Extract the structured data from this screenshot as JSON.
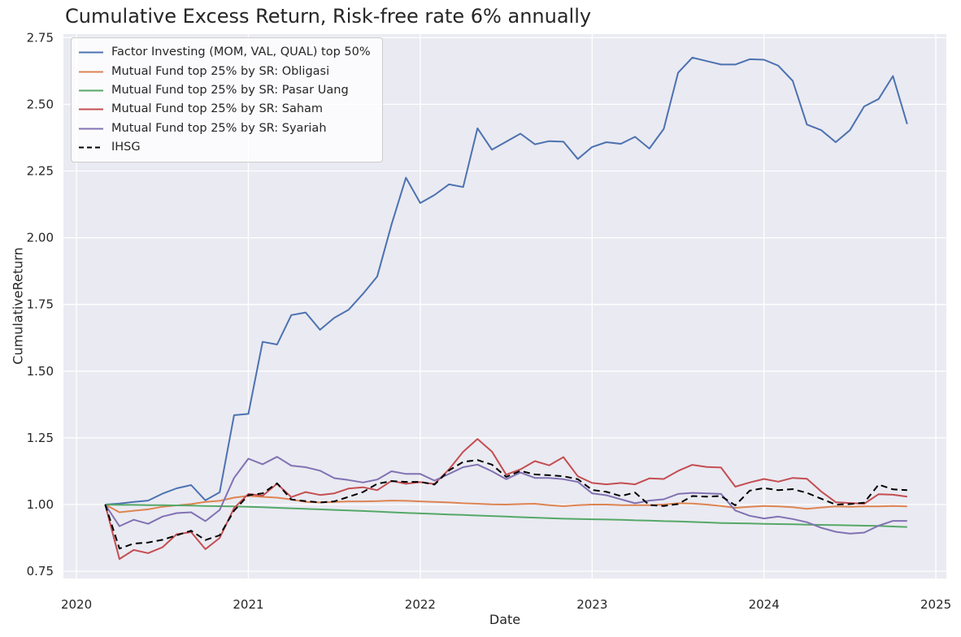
{
  "chart_data": {
    "type": "line",
    "title": "Cumulative Excess Return, Risk-free rate 6% annually",
    "xlabel": "Date",
    "ylabel": "CumulativeReturn",
    "x_tick_labels": [
      "2020",
      "2021",
      "2022",
      "2023",
      "2024",
      "2025"
    ],
    "x_tick_values": [
      2020,
      2021,
      2022,
      2023,
      2024,
      2025
    ],
    "y_tick_labels": [
      "0.75",
      "1.00",
      "1.25",
      "1.50",
      "1.75",
      "2.00",
      "2.25",
      "2.50",
      "2.75"
    ],
    "y_tick_values": [
      0.75,
      1.0,
      1.25,
      1.5,
      1.75,
      2.0,
      2.25,
      2.5,
      2.75
    ],
    "xlim": [
      2019.924,
      2025.061
    ],
    "ylim": [
      0.723,
      2.763
    ],
    "grid": true,
    "legend_position": "upper left",
    "plot_background": "#eaeaf2",
    "grid_color": "#ffffff",
    "x": [
      2020.167,
      2020.25,
      2020.333,
      2020.417,
      2020.5,
      2020.583,
      2020.667,
      2020.75,
      2020.833,
      2020.917,
      2021.0,
      2021.083,
      2021.167,
      2021.25,
      2021.333,
      2021.417,
      2021.5,
      2021.583,
      2021.667,
      2021.75,
      2021.833,
      2021.917,
      2022.0,
      2022.083,
      2022.167,
      2022.25,
      2022.333,
      2022.417,
      2022.5,
      2022.583,
      2022.667,
      2022.75,
      2022.833,
      2022.917,
      2023.0,
      2023.083,
      2023.167,
      2023.25,
      2023.333,
      2023.417,
      2023.5,
      2023.583,
      2023.667,
      2023.75,
      2023.833,
      2023.917,
      2024.0,
      2024.083,
      2024.167,
      2024.25,
      2024.333,
      2024.417,
      2024.5,
      2024.583,
      2024.667,
      2024.75,
      2024.833
    ],
    "series": [
      {
        "name": "Factor Investing (MOM, VAL, QUAL) top 50%",
        "color": "#4c72b0",
        "style": "solid",
        "values": [
          1.0,
          1.004,
          1.01,
          1.015,
          1.041,
          1.061,
          1.073,
          1.016,
          1.046,
          1.335,
          1.34,
          1.61,
          1.6,
          1.71,
          1.72,
          1.655,
          1.7,
          1.73,
          1.79,
          1.855,
          2.05,
          2.225,
          2.13,
          2.16,
          2.2,
          2.19,
          2.41,
          2.33,
          2.36,
          2.39,
          2.35,
          2.362,
          2.36,
          2.295,
          2.34,
          2.358,
          2.352,
          2.378,
          2.334,
          2.408,
          2.618,
          2.675,
          2.662,
          2.649,
          2.649,
          2.669,
          2.667,
          2.645,
          2.588,
          2.424,
          2.403,
          2.358,
          2.403,
          2.492,
          2.52,
          2.606,
          2.426
        ]
      },
      {
        "name": "Mutual Fund top 25% by SR: Obligasi",
        "color": "#dd8452",
        "style": "solid",
        "values": [
          1.0,
          0.971,
          0.977,
          0.982,
          0.992,
          0.997,
          1.002,
          1.01,
          1.014,
          1.026,
          1.033,
          1.029,
          1.026,
          1.019,
          1.01,
          1.008,
          1.01,
          1.012,
          1.012,
          1.013,
          1.015,
          1.014,
          1.012,
          1.01,
          1.008,
          1.005,
          1.003,
          1.001,
          1.0,
          1.002,
          1.003,
          0.998,
          0.994,
          0.998,
          1.0,
          1.0,
          0.998,
          0.998,
          0.998,
          1.0,
          1.005,
          1.004,
          1.0,
          0.995,
          0.988,
          0.992,
          0.995,
          0.993,
          0.99,
          0.984,
          0.989,
          0.993,
          0.992,
          0.993,
          0.993,
          0.995,
          0.993
        ]
      },
      {
        "name": "Mutual Fund top 25% by SR: Pasar Uang",
        "color": "#55a868",
        "style": "solid",
        "values": [
          1.0,
          0.999,
          0.999,
          0.998,
          0.998,
          0.997,
          0.996,
          0.995,
          0.994,
          0.993,
          0.992,
          0.99,
          0.988,
          0.986,
          0.984,
          0.982,
          0.98,
          0.978,
          0.976,
          0.974,
          0.971,
          0.969,
          0.967,
          0.965,
          0.963,
          0.961,
          0.959,
          0.957,
          0.955,
          0.953,
          0.951,
          0.949,
          0.947,
          0.946,
          0.945,
          0.944,
          0.943,
          0.941,
          0.94,
          0.938,
          0.937,
          0.935,
          0.933,
          0.931,
          0.93,
          0.929,
          0.928,
          0.927,
          0.926,
          0.925,
          0.924,
          0.923,
          0.922,
          0.921,
          0.92,
          0.918,
          0.916
        ]
      },
      {
        "name": "Mutual Fund top 25% by SR: Saham",
        "color": "#c44e52",
        "style": "solid",
        "values": [
          1.0,
          0.796,
          0.83,
          0.818,
          0.84,
          0.889,
          0.897,
          0.833,
          0.875,
          0.987,
          1.04,
          1.033,
          1.078,
          1.028,
          1.047,
          1.036,
          1.042,
          1.06,
          1.065,
          1.054,
          1.089,
          1.078,
          1.084,
          1.077,
          1.132,
          1.198,
          1.246,
          1.199,
          1.112,
          1.132,
          1.163,
          1.147,
          1.178,
          1.106,
          1.081,
          1.076,
          1.081,
          1.076,
          1.098,
          1.096,
          1.126,
          1.149,
          1.141,
          1.139,
          1.067,
          1.083,
          1.096,
          1.086,
          1.1,
          1.097,
          1.049,
          1.009,
          1.006,
          1.003,
          1.039,
          1.037,
          1.03
        ]
      },
      {
        "name": "Mutual Fund top 25% by SR: Syariah",
        "color": "#8172b3",
        "style": "solid",
        "values": [
          1.0,
          0.919,
          0.943,
          0.928,
          0.955,
          0.968,
          0.971,
          0.938,
          0.98,
          1.1,
          1.172,
          1.151,
          1.179,
          1.146,
          1.14,
          1.127,
          1.099,
          1.092,
          1.083,
          1.094,
          1.125,
          1.115,
          1.115,
          1.09,
          1.115,
          1.14,
          1.15,
          1.125,
          1.095,
          1.12,
          1.1,
          1.1,
          1.095,
          1.085,
          1.042,
          1.035,
          1.02,
          1.005,
          1.015,
          1.02,
          1.04,
          1.044,
          1.042,
          1.04,
          0.978,
          0.958,
          0.948,
          0.955,
          0.946,
          0.934,
          0.913,
          0.898,
          0.891,
          0.895,
          0.921,
          0.939,
          0.939
        ]
      },
      {
        "name": "IHSG",
        "color": "#000000",
        "style": "dashed",
        "values": [
          1.0,
          0.835,
          0.854,
          0.858,
          0.868,
          0.885,
          0.902,
          0.867,
          0.885,
          0.977,
          1.035,
          1.042,
          1.08,
          1.019,
          1.013,
          1.008,
          1.012,
          1.029,
          1.047,
          1.078,
          1.088,
          1.085,
          1.085,
          1.075,
          1.128,
          1.16,
          1.167,
          1.15,
          1.104,
          1.126,
          1.113,
          1.11,
          1.106,
          1.095,
          1.055,
          1.048,
          1.032,
          1.045,
          0.998,
          0.995,
          1.002,
          1.032,
          1.03,
          1.032,
          0.997,
          1.052,
          1.062,
          1.054,
          1.058,
          1.044,
          1.022,
          1.0,
          1.002,
          1.007,
          1.075,
          1.057,
          1.054
        ]
      }
    ]
  }
}
